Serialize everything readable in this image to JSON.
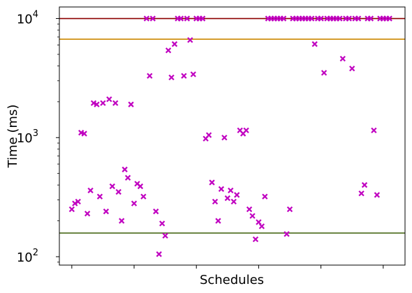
{
  "chart_data": {
    "type": "scatter",
    "xlabel": "Schedules",
    "ylabel": "Time (ms)",
    "yscale": "log",
    "ylim": [
      85,
      12500
    ],
    "xlim": [
      -4,
      107
    ],
    "yticks": [
      {
        "base": "10",
        "exp": "2",
        "value": 100
      },
      {
        "base": "10",
        "exp": "3",
        "value": 1000
      },
      {
        "base": "10",
        "exp": "4",
        "value": 10000
      }
    ],
    "x_tick_count": 6,
    "grid": false,
    "marker": "x",
    "marker_color": "#c000c0",
    "reference_lines": [
      {
        "value": 10000,
        "color": "#8b0000"
      },
      {
        "value": 6700,
        "color": "#cc8800"
      },
      {
        "value": 158,
        "color": "#4a6a1a"
      }
    ],
    "points": [
      [
        0,
        250
      ],
      [
        1,
        280
      ],
      [
        2,
        290
      ],
      [
        3,
        1100
      ],
      [
        4,
        1080
      ],
      [
        5,
        230
      ],
      [
        6,
        360
      ],
      [
        7,
        1950
      ],
      [
        8,
        1900
      ],
      [
        9,
        320
      ],
      [
        10,
        1950
      ],
      [
        11,
        240
      ],
      [
        12,
        2100
      ],
      [
        13,
        390
      ],
      [
        14,
        1950
      ],
      [
        15,
        350
      ],
      [
        16,
        200
      ],
      [
        17,
        540
      ],
      [
        18,
        460
      ],
      [
        19,
        1900
      ],
      [
        20,
        280
      ],
      [
        21,
        410
      ],
      [
        22,
        390
      ],
      [
        23,
        320
      ],
      [
        24,
        10000
      ],
      [
        25,
        3300
      ],
      [
        26,
        10000
      ],
      [
        27,
        240
      ],
      [
        28,
        105
      ],
      [
        29,
        190
      ],
      [
        30,
        150
      ],
      [
        31,
        5400
      ],
      [
        32,
        3200
      ],
      [
        33,
        6100
      ],
      [
        34,
        10000
      ],
      [
        35,
        10000
      ],
      [
        36,
        3300
      ],
      [
        37,
        10000
      ],
      [
        38,
        6600
      ],
      [
        39,
        3400
      ],
      [
        40,
        10000
      ],
      [
        41,
        10000
      ],
      [
        42,
        10000
      ],
      [
        43,
        980
      ],
      [
        44,
        1050
      ],
      [
        45,
        420
      ],
      [
        46,
        290
      ],
      [
        47,
        200
      ],
      [
        48,
        370
      ],
      [
        49,
        1000
      ],
      [
        50,
        310
      ],
      [
        51,
        360
      ],
      [
        52,
        290
      ],
      [
        53,
        330
      ],
      [
        54,
        1150
      ],
      [
        55,
        1080
      ],
      [
        56,
        1150
      ],
      [
        57,
        250
      ],
      [
        58,
        220
      ],
      [
        59,
        140
      ],
      [
        60,
        195
      ],
      [
        61,
        180
      ],
      [
        62,
        320
      ],
      [
        63,
        10000
      ],
      [
        64,
        10000
      ],
      [
        65,
        10000
      ],
      [
        66,
        10000
      ],
      [
        67,
        10000
      ],
      [
        68,
        10000
      ],
      [
        69,
        155
      ],
      [
        70,
        250
      ],
      [
        71,
        10000
      ],
      [
        72,
        10000
      ],
      [
        73,
        10000
      ],
      [
        74,
        10000
      ],
      [
        75,
        10000
      ],
      [
        76,
        10000
      ],
      [
        77,
        10000
      ],
      [
        78,
        6100
      ],
      [
        79,
        10000
      ],
      [
        80,
        10000
      ],
      [
        81,
        3500
      ],
      [
        82,
        10000
      ],
      [
        83,
        10000
      ],
      [
        84,
        10000
      ],
      [
        85,
        10000
      ],
      [
        86,
        10000
      ],
      [
        87,
        4600
      ],
      [
        88,
        10000
      ],
      [
        89,
        10000
      ],
      [
        90,
        3800
      ],
      [
        91,
        10000
      ],
      [
        92,
        10000
      ],
      [
        93,
        340
      ],
      [
        94,
        400
      ],
      [
        95,
        10000
      ],
      [
        96,
        10000
      ],
      [
        97,
        1150
      ],
      [
        98,
        330
      ],
      [
        99,
        10000
      ],
      [
        100,
        10000
      ],
      [
        101,
        10000
      ],
      [
        102,
        10000
      ]
    ]
  }
}
